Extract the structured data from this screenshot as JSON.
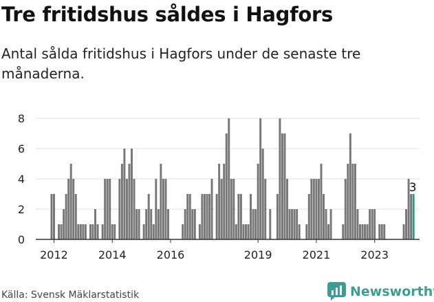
{
  "header": {
    "title": "Tre fritidshus såldes i Hagfors",
    "subtitle": "Antal sålda fritidshus i Hagfors under de senaste tre månaderna."
  },
  "footer": {
    "source": "Källa: Svensk Mäklarstatistik",
    "brand": "Newsworthy"
  },
  "colors": {
    "bar": "#777777",
    "highlight": "#2a9a8c",
    "grid": "#dddddd",
    "axis": "#333333",
    "brand": "#3d9d92"
  },
  "chart_data": {
    "type": "bar",
    "title": "Tre fritidshus såldes i Hagfors",
    "subtitle": "Antal sålda fritidshus i Hagfors under de senaste tre månaderna.",
    "xlabel": "",
    "ylabel": "",
    "ylim": [
      0,
      8
    ],
    "yticks": [
      0,
      2,
      4,
      6,
      8
    ],
    "grid": true,
    "start": "2012-01",
    "x_tick_labels": [
      "2012",
      "2014",
      "2016",
      "2019",
      "2021",
      "2023"
    ],
    "x_tick_dates": [
      "2012-06",
      "2014-06",
      "2016-06",
      "2019-06",
      "2021-06",
      "2023-06"
    ],
    "highlight_last": true,
    "last_value_label": "3",
    "values": [
      0,
      0,
      0,
      0,
      3,
      3,
      0,
      1,
      1,
      2,
      3,
      4,
      5,
      4,
      3,
      1,
      1,
      1,
      1,
      0,
      1,
      1,
      2,
      1,
      0,
      1,
      4,
      4,
      4,
      1,
      1,
      0,
      4,
      5,
      6,
      4,
      5,
      6,
      4,
      2,
      2,
      0,
      1,
      2,
      3,
      2,
      1,
      4,
      2,
      5,
      4,
      4,
      2,
      0,
      0,
      0,
      0,
      0,
      1,
      2,
      3,
      3,
      2,
      2,
      0,
      1,
      3,
      3,
      3,
      3,
      4,
      0,
      3,
      5,
      4,
      5,
      7,
      8,
      4,
      4,
      1,
      3,
      3,
      1,
      1,
      1,
      3,
      2,
      2,
      5,
      8,
      6,
      4,
      0,
      2,
      0,
      0,
      3,
      8,
      7,
      7,
      4,
      2,
      2,
      2,
      2,
      1,
      0,
      0,
      1,
      3,
      4,
      4,
      4,
      4,
      5,
      3,
      2,
      1,
      2,
      0,
      0,
      0,
      0,
      1,
      4,
      5,
      7,
      5,
      5,
      2,
      1,
      1,
      1,
      1,
      2,
      2,
      2,
      0,
      1,
      1,
      1,
      0,
      0,
      0,
      0,
      0,
      0,
      0,
      1,
      2,
      4,
      3,
      3
    ]
  }
}
